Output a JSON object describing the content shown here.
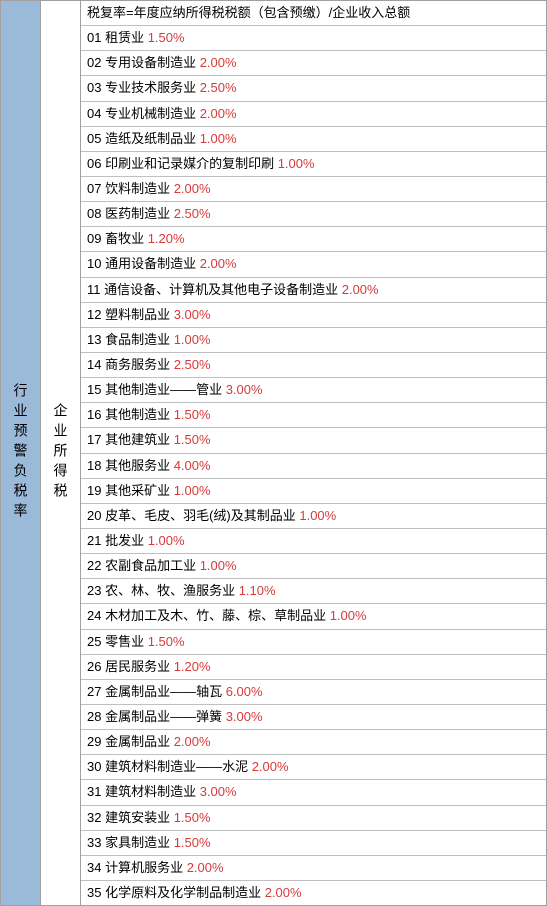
{
  "leftColumn": "行业预警负税率",
  "midColumn": "企业所得税",
  "headerFormula": "税复率=年度应纳所得税税额（包含预缴）/企业收入总额",
  "rows": [
    {
      "num": "01",
      "label": "租赁业",
      "pct": "1.50%"
    },
    {
      "num": "02",
      "label": "专用设备制造业",
      "pct": "2.00%"
    },
    {
      "num": "03",
      "label": "专业技术服务业",
      "pct": "2.50%"
    },
    {
      "num": "04",
      "label": "专业机械制造业",
      "pct": "2.00%"
    },
    {
      "num": "05",
      "label": "造纸及纸制品业",
      "pct": "1.00%"
    },
    {
      "num": "06",
      "label": "印刷业和记录媒介的复制印刷",
      "pct": "1.00%"
    },
    {
      "num": "07",
      "label": "饮料制造业",
      "pct": "2.00%"
    },
    {
      "num": "08",
      "label": "医药制造业",
      "pct": "2.50%"
    },
    {
      "num": "09",
      "label": "畜牧业",
      "pct": "1.20%"
    },
    {
      "num": "10",
      "label": "通用设备制造业",
      "pct": "2.00%"
    },
    {
      "num": "11",
      "label": "通信设备、计算机及其他电子设备制造业",
      "pct": "2.00%"
    },
    {
      "num": "12",
      "label": "塑料制品业",
      "pct": "3.00%"
    },
    {
      "num": "13",
      "label": "食品制造业",
      "pct": "1.00%"
    },
    {
      "num": "14",
      "label": "商务服务业",
      "pct": "2.50%"
    },
    {
      "num": "15",
      "label": "其他制造业——管业",
      "pct": "3.00%"
    },
    {
      "num": "16",
      "label": "其他制造业",
      "pct": "1.50%"
    },
    {
      "num": "17",
      "label": "其他建筑业",
      "pct": "1.50%"
    },
    {
      "num": "18",
      "label": "其他服务业",
      "pct": "4.00%"
    },
    {
      "num": "19",
      "label": "其他采矿业",
      "pct": "1.00%"
    },
    {
      "num": "20",
      "label": "皮革、毛皮、羽毛(绒)及其制品业",
      "pct": "1.00%"
    },
    {
      "num": "21",
      "label": "批发业",
      "pct": "1.00%"
    },
    {
      "num": "22",
      "label": "农副食品加工业",
      "pct": "1.00%"
    },
    {
      "num": "23",
      "label": "农、林、牧、渔服务业",
      "pct": "1.10%"
    },
    {
      "num": "24",
      "label": "木材加工及木、竹、藤、棕、草制品业",
      "pct": "1.00%"
    },
    {
      "num": "25",
      "label": "零售业",
      "pct": "1.50%"
    },
    {
      "num": "26",
      "label": "居民服务业",
      "pct": "1.20%"
    },
    {
      "num": "27",
      "label": "金属制品业——轴瓦",
      "pct": "6.00%"
    },
    {
      "num": "28",
      "label": "金属制品业——弹簧",
      "pct": "3.00%"
    },
    {
      "num": "29",
      "label": "金属制品业",
      "pct": "2.00%"
    },
    {
      "num": "30",
      "label": "建筑材料制造业——水泥",
      "pct": "2.00%"
    },
    {
      "num": "31",
      "label": "建筑材料制造业",
      "pct": "3.00%"
    },
    {
      "num": "32",
      "label": "建筑安装业",
      "pct": "1.50%"
    },
    {
      "num": "33",
      "label": "家具制造业",
      "pct": "1.50%"
    },
    {
      "num": "34",
      "label": "计算机服务业",
      "pct": "2.00%"
    },
    {
      "num": "35",
      "label": "化学原料及化学制品制造业",
      "pct": "2.00%"
    }
  ],
  "colors": {
    "leftBg": "#9bb9d9",
    "pctColor": "#d83a3a",
    "borderColor": "#c0c0c0",
    "textColor": "#000000"
  }
}
